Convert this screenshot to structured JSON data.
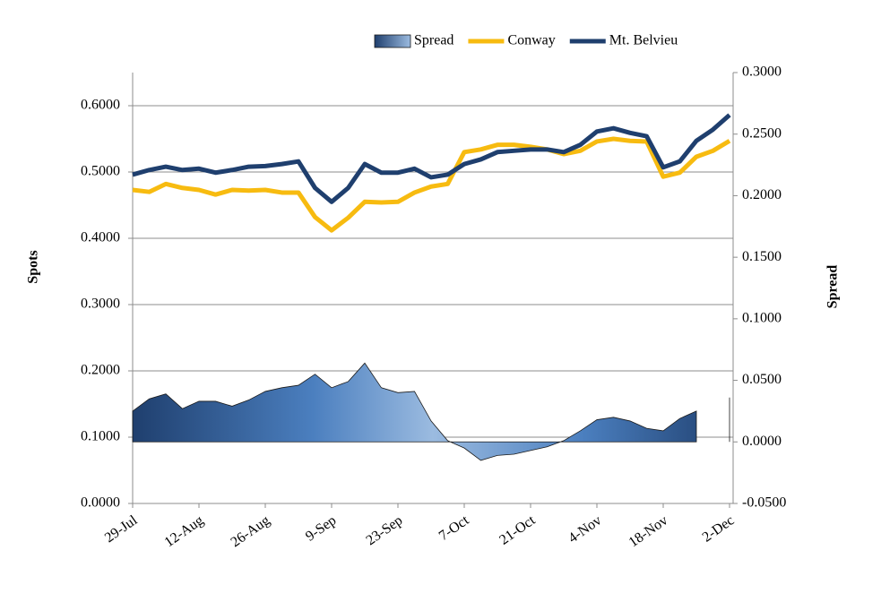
{
  "chart_data": {
    "type": "line-area",
    "y_label": "Spots",
    "y2_label": "Spread",
    "categories": [
      "29-Jul",
      null,
      null,
      null,
      "12-Aug",
      null,
      null,
      null,
      "26-Aug",
      null,
      null,
      null,
      "9-Sep",
      null,
      null,
      null,
      "23-Sep",
      null,
      null,
      null,
      "7-Oct",
      null,
      null,
      null,
      "21-Oct",
      null,
      null,
      null,
      "4-Nov",
      null,
      null,
      null,
      "18-Nov",
      null,
      null,
      null,
      "2-Dec"
    ],
    "series": [
      {
        "name": "Spread",
        "kind": "area",
        "axis": "y2",
        "color": "#2e5a8c",
        "values": [
          0.025,
          0.035,
          0.039,
          0.027,
          0.033,
          0.033,
          0.029,
          0.034,
          0.041,
          0.044,
          0.046,
          0.055,
          0.044,
          0.049,
          0.064,
          0.044,
          0.04,
          0.041,
          0.017,
          0.001,
          -0.005,
          -0.015,
          -0.011,
          -0.01,
          -0.007,
          -0.004,
          0.001,
          0.009,
          0.018,
          0.02,
          0.017,
          0.011,
          0.009,
          0.019,
          0.025,
          null,
          0.036
        ]
      },
      {
        "name": "Conway",
        "kind": "line",
        "color": "#f7bb10",
        "values": [
          0.473,
          0.47,
          0.482,
          0.476,
          0.473,
          0.466,
          0.473,
          0.472,
          0.473,
          0.469,
          0.469,
          0.432,
          0.412,
          0.431,
          0.455,
          0.454,
          0.455,
          0.469,
          0.478,
          0.482,
          0.53,
          0.534,
          0.541,
          0.541,
          0.538,
          0.534,
          0.527,
          0.532,
          0.546,
          0.55,
          0.547,
          0.546,
          0.493,
          0.499,
          0.523,
          0.532,
          0.547
        ]
      },
      {
        "name": "Mt. Belvieu",
        "kind": "line",
        "color": "#1f3f6e",
        "values": [
          0.496,
          0.503,
          0.508,
          0.503,
          0.505,
          0.499,
          0.503,
          0.508,
          0.509,
          0.512,
          0.516,
          0.476,
          0.455,
          0.476,
          0.512,
          0.499,
          0.499,
          0.505,
          0.492,
          0.496,
          0.512,
          0.519,
          0.53,
          0.532,
          0.534,
          0.534,
          0.53,
          0.541,
          0.561,
          0.566,
          0.559,
          0.554,
          0.507,
          0.516,
          0.547,
          0.564,
          0.586
        ]
      }
    ],
    "ylim": [
      0,
      0.65
    ],
    "yticks": [
      {
        "value": 0,
        "label": "0.0000"
      },
      {
        "value": 0.1,
        "label": "0.1000"
      },
      {
        "value": 0.2,
        "label": "0.2000"
      },
      {
        "value": 0.3,
        "label": "0.3000"
      },
      {
        "value": 0.4,
        "label": "0.4000"
      },
      {
        "value": 0.5,
        "label": "0.5000"
      },
      {
        "value": 0.6,
        "label": "0.6000"
      }
    ],
    "y2lim": [
      -0.05,
      0.3
    ],
    "y2ticks": [
      {
        "value": -0.05,
        "label": "-0.0500"
      },
      {
        "value": 0,
        "label": "0.0000"
      },
      {
        "value": 0.05,
        "label": "0.0500"
      },
      {
        "value": 0.1,
        "label": "0.1000"
      },
      {
        "value": 0.15,
        "label": "0.1500"
      },
      {
        "value": 0.2,
        "label": "0.2000"
      },
      {
        "value": 0.25,
        "label": "0.2500"
      },
      {
        "value": 0.3,
        "label": "0.3000"
      }
    ],
    "grid": true,
    "legend": "top-right"
  }
}
